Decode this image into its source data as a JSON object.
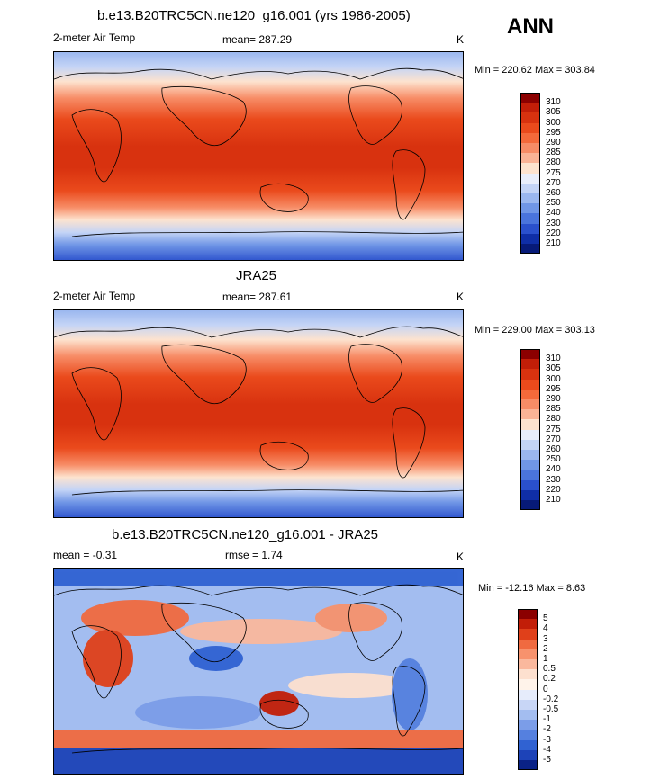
{
  "season": "ANN",
  "panels": [
    {
      "id": "model",
      "title": "b.e13.B20TRC5CN.ne120_g16.001 (yrs 1986-2005)",
      "left_label": "2-meter Air Temp",
      "center_label": "mean= 287.29",
      "units": "K",
      "minmax": "Min = 220.62 Max = 303.84",
      "colorbar": {
        "labels": [
          "310",
          "305",
          "300",
          "295",
          "290",
          "285",
          "280",
          "275",
          "270",
          "260",
          "250",
          "240",
          "230",
          "220",
          "210"
        ],
        "colors": [
          "#8b0000",
          "#c21e08",
          "#d8320f",
          "#ea4a1c",
          "#f4693a",
          "#f78c66",
          "#fab396",
          "#fde3cf",
          "#e9eefb",
          "#c4d4f6",
          "#9bb7ef",
          "#7096e6",
          "#4a74dc",
          "#2a50cc",
          "#0f2ea6",
          "#071a78"
        ]
      },
      "chart_data": {
        "type": "heatmap",
        "title": "b.e13.B20TRC5CN.ne120_g16.001 (yrs 1986-2005)",
        "variable": "2-meter Air Temp",
        "units": "K",
        "mean": 287.29,
        "min": 220.62,
        "max": 303.84,
        "contour_levels": [
          210,
          220,
          230,
          240,
          250,
          260,
          270,
          275,
          280,
          285,
          290,
          295,
          300,
          305,
          310
        ]
      }
    },
    {
      "id": "obs",
      "title": "JRA25",
      "left_label": "2-meter Air Temp",
      "center_label": "mean= 287.61",
      "units": "K",
      "minmax": "Min = 229.00 Max = 303.13",
      "colorbar": {
        "labels": [
          "310",
          "305",
          "300",
          "295",
          "290",
          "285",
          "280",
          "275",
          "270",
          "260",
          "250",
          "240",
          "230",
          "220",
          "210"
        ],
        "colors": [
          "#8b0000",
          "#c21e08",
          "#d8320f",
          "#ea4a1c",
          "#f4693a",
          "#f78c66",
          "#fab396",
          "#fde3cf",
          "#e9eefb",
          "#c4d4f6",
          "#9bb7ef",
          "#7096e6",
          "#4a74dc",
          "#2a50cc",
          "#0f2ea6",
          "#071a78"
        ]
      },
      "chart_data": {
        "type": "heatmap",
        "title": "JRA25",
        "variable": "2-meter Air Temp",
        "units": "K",
        "mean": 287.61,
        "min": 229.0,
        "max": 303.13,
        "contour_levels": [
          210,
          220,
          230,
          240,
          250,
          260,
          270,
          275,
          280,
          285,
          290,
          295,
          300,
          305,
          310
        ]
      }
    },
    {
      "id": "diff",
      "title": "b.e13.B20TRC5CN.ne120_g16.001 - JRA25",
      "left_label": "mean =  -0.31",
      "center_label": "rmse =   1.74",
      "units": "K",
      "minmax": "Min = -12.16 Max =   8.63",
      "colorbar": {
        "labels": [
          "5",
          "4",
          "3",
          "2",
          "1",
          "0.5",
          "0.2",
          "0",
          "-0.2",
          "-0.5",
          "-1",
          "-2",
          "-3",
          "-4",
          "-5"
        ],
        "colors": [
          "#8b0000",
          "#c21e08",
          "#e0401a",
          "#f06a40",
          "#f7926d",
          "#fab89d",
          "#fde0cf",
          "#fff3ea",
          "#e6ecfb",
          "#c8d6f6",
          "#a3bdf0",
          "#7b9de8",
          "#5580df",
          "#3062d2",
          "#1d43b8",
          "#0a2286"
        ]
      },
      "chart_data": {
        "type": "heatmap",
        "title": "b.e13.B20TRC5CN.ne120_g16.001 - JRA25",
        "variable": "2-meter Air Temp difference",
        "units": "K",
        "mean": -0.31,
        "rmse": 1.74,
        "min": -12.16,
        "max": 8.63,
        "contour_levels": [
          -5,
          -4,
          -3,
          -2,
          -1,
          -0.5,
          -0.2,
          0,
          0.2,
          0.5,
          1,
          2,
          3,
          4,
          5
        ]
      }
    }
  ]
}
